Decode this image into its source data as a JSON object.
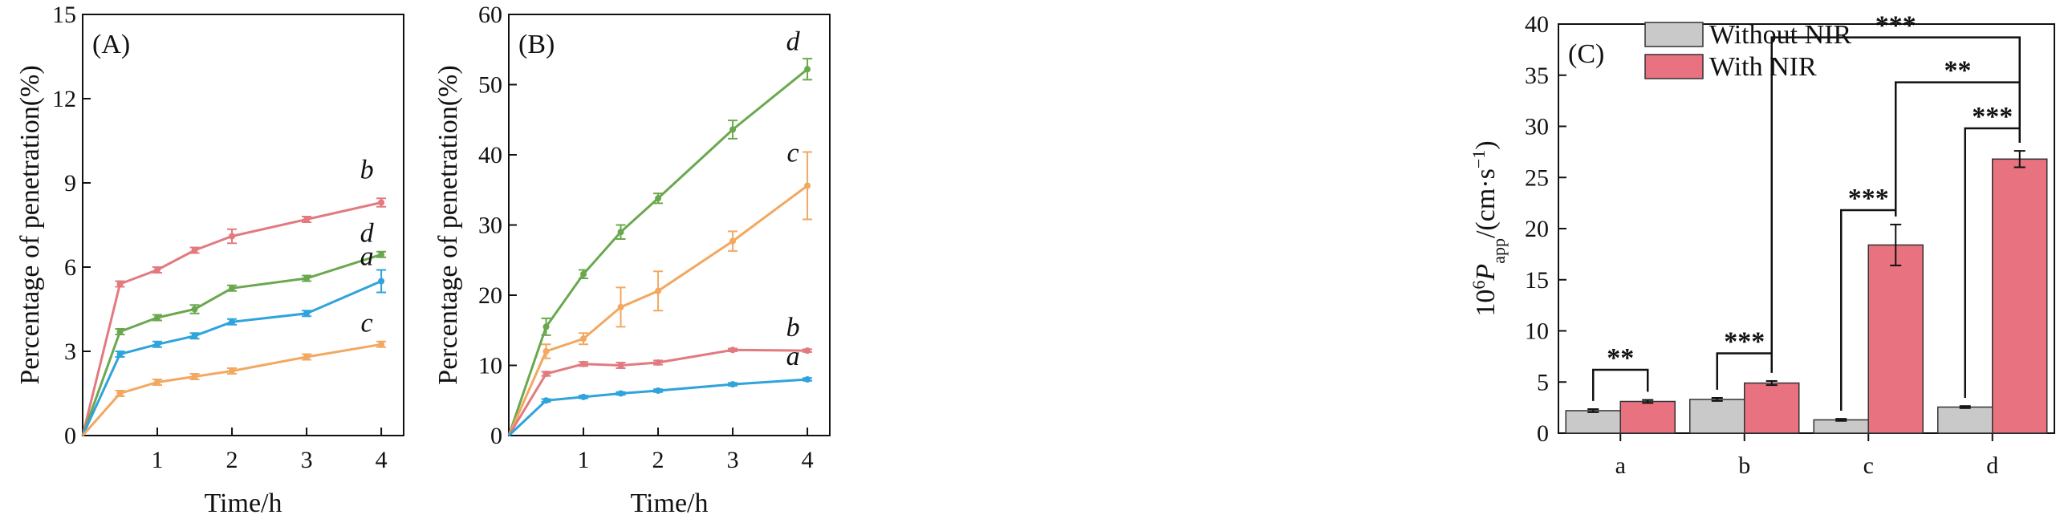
{
  "chart_data": [
    {
      "panel": "(A)",
      "type": "line",
      "xlabel": "Time/h",
      "ylabel": "Percentage of penetration(%)",
      "xlim": [
        0,
        4.3
      ],
      "ylim": [
        0,
        15
      ],
      "xticks": [
        1,
        2,
        3,
        4
      ],
      "yticks": [
        0,
        3,
        6,
        9,
        12,
        15
      ],
      "x": [
        0,
        0.5,
        1,
        1.5,
        2,
        3,
        4
      ],
      "series": [
        {
          "name": "b",
          "color": "#e27a80",
          "values": [
            0,
            5.4,
            5.9,
            6.6,
            7.1,
            7.7,
            8.3
          ],
          "errors": [
            0,
            0.1,
            0.1,
            0.1,
            0.25,
            0.1,
            0.15
          ]
        },
        {
          "name": "d",
          "color": "#6aa84f",
          "values": [
            0,
            3.7,
            4.2,
            4.5,
            5.25,
            5.6,
            6.45
          ],
          "errors": [
            0,
            0.1,
            0.1,
            0.15,
            0.1,
            0.1,
            0.1
          ]
        },
        {
          "name": "a",
          "color": "#2fa3dc",
          "values": [
            0,
            2.9,
            3.25,
            3.55,
            4.05,
            4.35,
            5.5
          ],
          "errors": [
            0,
            0.1,
            0.1,
            0.1,
            0.1,
            0.1,
            0.4
          ]
        },
        {
          "name": "c",
          "color": "#f2a860",
          "values": [
            0,
            1.5,
            1.9,
            2.1,
            2.3,
            2.8,
            3.25
          ],
          "errors": [
            0,
            0.1,
            0.1,
            0.1,
            0.1,
            0.1,
            0.1
          ]
        }
      ]
    },
    {
      "panel": "(B)",
      "type": "line",
      "xlabel": "Time/h",
      "ylabel": "Percentage of penetration(%)",
      "xlim": [
        0,
        4.3
      ],
      "ylim": [
        0,
        60
      ],
      "xticks": [
        1,
        2,
        3,
        4
      ],
      "yticks": [
        0,
        10,
        20,
        30,
        40,
        50,
        60
      ],
      "x": [
        0,
        0.5,
        1,
        1.5,
        2,
        3,
        4
      ],
      "series": [
        {
          "name": "d",
          "color": "#6aa84f",
          "values": [
            0,
            15.5,
            23,
            29,
            33.8,
            43.6,
            52.2
          ],
          "errors": [
            0,
            1.2,
            0.6,
            1.0,
            0.7,
            1.3,
            1.5
          ]
        },
        {
          "name": "c",
          "color": "#f2a860",
          "values": [
            0,
            12,
            13.8,
            18.3,
            20.6,
            27.7,
            35.6
          ],
          "errors": [
            0,
            1.0,
            0.8,
            2.8,
            2.8,
            1.4,
            4.8
          ]
        },
        {
          "name": "b",
          "color": "#e27a80",
          "values": [
            0,
            8.8,
            10.2,
            10,
            10.4,
            12.2,
            12.1
          ],
          "errors": [
            0,
            0.3,
            0.3,
            0.4,
            0.3,
            0.2,
            0.2
          ]
        },
        {
          "name": "a",
          "color": "#2fa3dc",
          "values": [
            0,
            5,
            5.5,
            6,
            6.4,
            7.3,
            8
          ],
          "errors": [
            0,
            0.2,
            0.2,
            0.2,
            0.2,
            0.2,
            0.2
          ]
        }
      ]
    },
    {
      "panel": "(C)",
      "type": "bar",
      "xlabel": "",
      "ylabel": "10^6 P_app/(cm·s^-1)",
      "ylim": [
        0,
        40
      ],
      "yticks": [
        5,
        10,
        15,
        20,
        25,
        30,
        35,
        40
      ],
      "ytick_labels": [
        "5",
        "10",
        "15",
        "20",
        "25",
        "30",
        "35",
        "40"
      ],
      "y_zero_label": "0",
      "categories": [
        "a",
        "b",
        "c",
        "d"
      ],
      "series": [
        {
          "name": "Without NIR",
          "color": "#c9c9c9",
          "values": [
            2.2,
            3.3,
            1.3,
            2.55
          ],
          "errors": [
            0.15,
            0.15,
            0.1,
            0.1
          ]
        },
        {
          "name": "With NIR",
          "color": "#e8727f",
          "values": [
            3.1,
            4.9,
            18.4,
            26.8
          ],
          "errors": [
            0.15,
            0.2,
            2.0,
            0.8
          ]
        }
      ],
      "legend": "top-left",
      "significance": [
        {
          "label": "**",
          "from": [
            0,
            0
          ],
          "to": [
            0,
            1
          ],
          "level": 6.2
        },
        {
          "label": "***",
          "from": [
            1,
            0
          ],
          "to": [
            1,
            1
          ],
          "level": 7.8
        },
        {
          "label": "***",
          "from": [
            2,
            0
          ],
          "to": [
            2,
            1
          ],
          "level": 21.8
        },
        {
          "label": "***",
          "from": [
            3,
            0
          ],
          "to": [
            3,
            1
          ],
          "level": 29.8
        },
        {
          "label": "**",
          "from": [
            2,
            1
          ],
          "to": [
            3,
            1
          ],
          "level": 34.3
        },
        {
          "label": "***",
          "from": [
            1,
            1
          ],
          "to": [
            3,
            1
          ],
          "level": 38.7
        }
      ]
    }
  ]
}
